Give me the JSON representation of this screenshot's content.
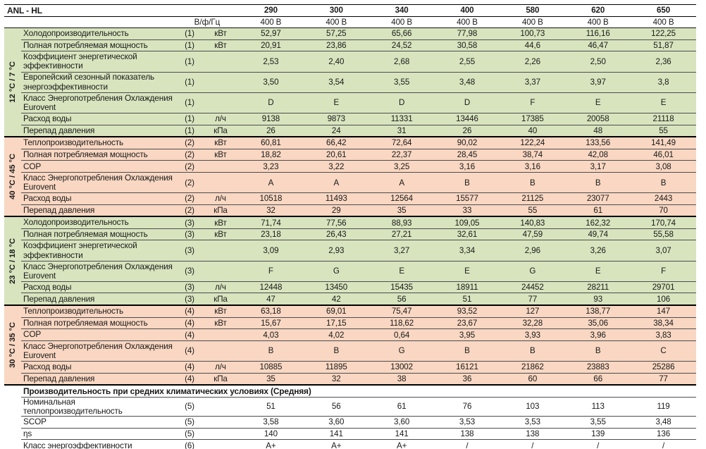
{
  "colors": {
    "green": "#d8e4be",
    "salmon": "#f9d7c2",
    "white": "#ffffff"
  },
  "header": {
    "title": "ANL - HL",
    "row2_label": "В/ф/Гц",
    "models": [
      "290",
      "300",
      "340",
      "400",
      "580",
      "620",
      "650"
    ],
    "voltages": [
      "400 В",
      "400 В",
      "400 В",
      "400 В",
      "400 В",
      "400 В",
      "400 В"
    ]
  },
  "sections": [
    {
      "side_label": "12 °C / 7 °C",
      "color_key": "green",
      "rows": [
        {
          "label": "Холодопроизводительность",
          "note": "(1)",
          "unit": "кВт",
          "h": 1,
          "values": [
            "52,97",
            "57,25",
            "65,66",
            "77,98",
            "100,73",
            "116,16",
            "122,25"
          ]
        },
        {
          "label": "Полная потребляемая мощность",
          "note": "(1)",
          "unit": "кВт",
          "h": 1,
          "values": [
            "20,91",
            "23,86",
            "24,52",
            "30,58",
            "44,6",
            "46,47",
            "51,87"
          ]
        },
        {
          "label": "Коэффициент энергетической эффективности",
          "note": "(1)",
          "unit": "",
          "h": 2,
          "values": [
            "2,53",
            "2,40",
            "2,68",
            "2,55",
            "2,26",
            "2,50",
            "2,36"
          ]
        },
        {
          "label": "Европейский сезонный показатель энергоэффективности",
          "note": "(1)",
          "unit": "",
          "h": 2,
          "values": [
            "3,50",
            "3,54",
            "3,55",
            "3,48",
            "3,37",
            "3,97",
            "3,8"
          ]
        },
        {
          "label": "Класс Энергопотребления Охлаждения Eurovent",
          "note": "(1)",
          "unit": "",
          "h": 2,
          "values": [
            "D",
            "E",
            "D",
            "D",
            "F",
            "E",
            "E"
          ]
        },
        {
          "label": "Расход воды",
          "note": "(1)",
          "unit": "л/ч",
          "h": 1,
          "values": [
            "9138",
            "9873",
            "11331",
            "13446",
            "17385",
            "20058",
            "21118"
          ]
        },
        {
          "label": "Перепад давления",
          "note": "(1)",
          "unit": "кПа",
          "h": 1,
          "values": [
            "26",
            "24",
            "31",
            "26",
            "40",
            "48",
            "55"
          ]
        }
      ]
    },
    {
      "side_label": "40 °C / 45 °C",
      "color_key": "salmon",
      "rows": [
        {
          "label": "Теплопроизводительность",
          "note": "(2)",
          "unit": "кВт",
          "h": 1,
          "values": [
            "60,81",
            "66,42",
            "72,64",
            "90,02",
            "122,24",
            "133,56",
            "141,49"
          ]
        },
        {
          "label": "Полная потребляемая мощность",
          "note": "(2)",
          "unit": "кВт",
          "h": 1,
          "values": [
            "18,82",
            "20,61",
            "22,37",
            "28,45",
            "38,74",
            "42,08",
            "46,01"
          ]
        },
        {
          "label": "COP",
          "note": "(2)",
          "unit": "",
          "h": 1,
          "values": [
            "3,23",
            "3,22",
            "3,25",
            "3,16",
            "3,16",
            "3,17",
            "3,08"
          ]
        },
        {
          "label": "Класс Энергопотребления Охлаждения Eurovent",
          "note": "(2)",
          "unit": "",
          "h": 2,
          "values": [
            "A",
            "A",
            "A",
            "B",
            "B",
            "B",
            "B"
          ]
        },
        {
          "label": "Расход воды",
          "note": "(2)",
          "unit": "л/ч",
          "h": 1,
          "values": [
            "10518",
            "11493",
            "12564",
            "15577",
            "21125",
            "23077",
            "2443"
          ]
        },
        {
          "label": "Перепад давления",
          "note": "(2)",
          "unit": "кПа",
          "h": 1,
          "values": [
            "32",
            "29",
            "35",
            "33",
            "55",
            "61",
            "70"
          ]
        }
      ]
    },
    {
      "side_label": "23 °C / 18 °C",
      "color_key": "green",
      "rows": [
        {
          "label": "Холодопроизводительность",
          "note": "(3)",
          "unit": "кВт",
          "h": 1,
          "values": [
            "71,74",
            "77,56",
            "88,93",
            "109,05",
            "140,83",
            "162,32",
            "170,74"
          ]
        },
        {
          "label": "Полная потребляемая мощность",
          "note": "(3)",
          "unit": "кВт",
          "h": 1,
          "values": [
            "23,18",
            "26,43",
            "27,21",
            "32,61",
            "47,59",
            "49,74",
            "55,58"
          ]
        },
        {
          "label": "Коэффициент энергетической эффективности",
          "note": "(3)",
          "unit": "",
          "h": 2,
          "values": [
            "3,09",
            "2,93",
            "3,27",
            "3,34",
            "2,96",
            "3,26",
            "3,07"
          ]
        },
        {
          "label": "Класс Энергопотребления Охлаждения Eurovent",
          "note": "(3)",
          "unit": "",
          "h": 2,
          "values": [
            "F",
            "G",
            "E",
            "E",
            "G",
            "E",
            "F"
          ]
        },
        {
          "label": "Расход воды",
          "note": "(3)",
          "unit": "л/ч",
          "h": 1,
          "values": [
            "12448",
            "13450",
            "15435",
            "18911",
            "24452",
            "28211",
            "29701"
          ]
        },
        {
          "label": "Перепад давления",
          "note": "(3)",
          "unit": "кПа",
          "h": 1,
          "values": [
            "47",
            "42",
            "56",
            "51",
            "77",
            "93",
            "106"
          ]
        }
      ]
    },
    {
      "side_label": "30 °C / 35 °C",
      "color_key": "salmon",
      "rows": [
        {
          "label": "Теплопроизводительность",
          "note": "(4)",
          "unit": "кВт",
          "h": 1,
          "values": [
            "63,18",
            "69,01",
            "75,47",
            "93,52",
            "127",
            "138,77",
            "147"
          ]
        },
        {
          "label": "Полная потребляемая мощность",
          "note": "(4)",
          "unit": "кВт",
          "h": 1,
          "values": [
            "15,67",
            "17,15",
            "118,62",
            "23,67",
            "32,28",
            "35,06",
            "38,34"
          ]
        },
        {
          "label": "COP",
          "note": "(4)",
          "unit": "",
          "h": 1,
          "values": [
            "4,03",
            "4,02",
            "0,64",
            "3,95",
            "3,93",
            "3,96",
            "3,83"
          ]
        },
        {
          "label": "Класс Энергопотребления Охлаждения Eurovent",
          "note": "(4)",
          "unit": "",
          "h": 2,
          "values": [
            "B",
            "B",
            "G",
            "B",
            "B",
            "B",
            "C"
          ]
        },
        {
          "label": "Расход воды",
          "note": "(4)",
          "unit": "л/ч",
          "h": 1,
          "values": [
            "10885",
            "11895",
            "13002",
            "16121",
            "21862",
            "23883",
            "25286"
          ]
        },
        {
          "label": "Перепад давления",
          "note": "(4)",
          "unit": "кПа",
          "h": 1,
          "values": [
            "35",
            "32",
            "38",
            "36",
            "60",
            "66",
            "77"
          ]
        }
      ]
    },
    {
      "side_label": "",
      "color_key": "white",
      "header": "Производительность при средних климатических условиях (Средняя)",
      "rows": [
        {
          "label": "Номинальная теплопроизводительность",
          "note": "(5)",
          "unit": "",
          "h": 1,
          "values": [
            "51",
            "56",
            "61",
            "76",
            "103",
            "113",
            "119"
          ]
        },
        {
          "label": "SCOP",
          "note": "(5)",
          "unit": "",
          "h": 1,
          "values": [
            "3,58",
            "3,60",
            "3,60",
            "3,53",
            "3,53",
            "3,55",
            "3,48"
          ]
        },
        {
          "label": "ηs",
          "note": "(5)",
          "unit": "",
          "h": 1,
          "values": [
            "140",
            "141",
            "141",
            "138",
            "138",
            "139",
            "136"
          ]
        },
        {
          "label": "Класс энергоэффективности",
          "note": "(6)",
          "unit": "",
          "h": 1,
          "values": [
            "A+",
            "A+",
            "A+",
            "/",
            "/",
            "/",
            "/"
          ]
        }
      ]
    }
  ]
}
